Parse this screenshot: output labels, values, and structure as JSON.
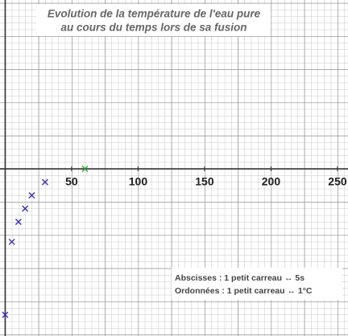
{
  "chart_data": {
    "type": "scatter",
    "title": [
      "Evolution de la température de l'eau pure",
      "au cours du temps lors de sa fusion"
    ],
    "annotations": [
      "Abscisses : 1 petit carreau ↔ 5s",
      "Ordonnées : 1 petit carreau ↔ 1°C"
    ],
    "x": [
      0,
      5,
      10,
      15,
      20,
      30,
      60
    ],
    "values": [
      -22,
      -11,
      -8,
      -6,
      -4,
      -2,
      0
    ],
    "colors": [
      "#3a2fb0",
      "#3a2fb0",
      "#3a2fb0",
      "#3a2fb0",
      "#3a2fb0",
      "#3a2fb0",
      "#2ea02e"
    ],
    "xlim": [
      -3.9,
      257.9
    ],
    "ylim": [
      -25.2,
      25.45
    ],
    "xticks": [
      50,
      100,
      150,
      200,
      250
    ]
  }
}
